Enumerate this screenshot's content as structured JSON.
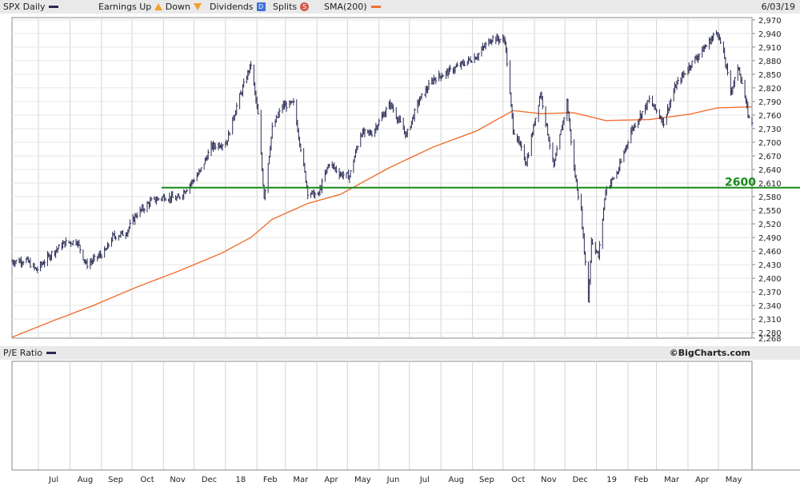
{
  "header": {
    "symbol": "SPX Daily",
    "earnings_label": "Earnings",
    "up_label": "Up",
    "down_label": "Down",
    "dividends_label": "Dividends",
    "dividends_badge": "D",
    "splits_label": "Splits",
    "splits_badge": "S",
    "sma_label": "SMA(200)",
    "date": "6/03/19",
    "colors": {
      "price": "#2a2a55",
      "sma": "#f07030",
      "support": "#1a8a1a"
    }
  },
  "pe_panel": {
    "title": "P/E Ratio"
  },
  "watermark": "©BigCharts.com",
  "chart_data": {
    "type": "line",
    "title": "SPX Daily",
    "x_tick_labels": [
      "Jul",
      "Aug",
      "Sep",
      "Oct",
      "Nov",
      "Dec",
      "18",
      "Feb",
      "Mar",
      "Apr",
      "May",
      "Jun",
      "Jul",
      "Aug",
      "Sep",
      "Oct",
      "Nov",
      "Dec",
      "19",
      "Feb",
      "Mar",
      "Apr",
      "May"
    ],
    "y_ticks": [
      2268,
      2280,
      2310,
      2340,
      2370,
      2400,
      2430,
      2460,
      2490,
      2520,
      2550,
      2580,
      2610,
      2640,
      2670,
      2700,
      2730,
      2760,
      2790,
      2820,
      2850,
      2880,
      2910,
      2940,
      2970
    ],
    "ylim": [
      2268,
      2975
    ],
    "support_line": {
      "value": 2600,
      "label": "2600"
    },
    "grid": true,
    "series": [
      {
        "name": "SPX Daily",
        "style": "ohlc-bars",
        "points": [
          [
            "2017-06-05",
            2437
          ],
          [
            "2017-06-19",
            2440
          ],
          [
            "2017-06-29",
            2418
          ],
          [
            "2017-07-14",
            2455
          ],
          [
            "2017-07-27",
            2478
          ],
          [
            "2017-08-08",
            2482
          ],
          [
            "2017-08-17",
            2430
          ],
          [
            "2017-08-24",
            2440
          ],
          [
            "2017-09-05",
            2460
          ],
          [
            "2017-09-12",
            2492
          ],
          [
            "2017-09-25",
            2500
          ],
          [
            "2017-10-05",
            2540
          ],
          [
            "2017-10-20",
            2570
          ],
          [
            "2017-11-02",
            2580
          ],
          [
            "2017-11-15",
            2575
          ],
          [
            "2017-11-28",
            2610
          ],
          [
            "2017-12-07",
            2635
          ],
          [
            "2017-12-18",
            2690
          ],
          [
            "2018-01-02",
            2700
          ],
          [
            "2018-01-12",
            2780
          ],
          [
            "2018-01-26",
            2872
          ],
          [
            "2018-02-02",
            2760
          ],
          [
            "2018-02-08",
            2580
          ],
          [
            "2018-02-16",
            2730
          ],
          [
            "2018-02-26",
            2780
          ],
          [
            "2018-03-09",
            2785
          ],
          [
            "2018-03-23",
            2590
          ],
          [
            "2018-04-02",
            2582
          ],
          [
            "2018-04-13",
            2655
          ],
          [
            "2018-04-24",
            2630
          ],
          [
            "2018-05-03",
            2625
          ],
          [
            "2018-05-14",
            2720
          ],
          [
            "2018-05-25",
            2720
          ],
          [
            "2018-06-12",
            2785
          ],
          [
            "2018-06-28",
            2715
          ],
          [
            "2018-07-10",
            2790
          ],
          [
            "2018-07-25",
            2840
          ],
          [
            "2018-08-08",
            2855
          ],
          [
            "2018-08-24",
            2875
          ],
          [
            "2018-09-05",
            2890
          ],
          [
            "2018-09-20",
            2930
          ],
          [
            "2018-10-03",
            2925
          ],
          [
            "2018-10-11",
            2730
          ],
          [
            "2018-10-24",
            2655
          ],
          [
            "2018-11-07",
            2810
          ],
          [
            "2018-11-20",
            2645
          ],
          [
            "2018-12-03",
            2790
          ],
          [
            "2018-12-10",
            2640
          ],
          [
            "2018-12-17",
            2545
          ],
          [
            "2018-12-24",
            2351
          ],
          [
            "2018-12-27",
            2485
          ],
          [
            "2019-01-03",
            2448
          ],
          [
            "2019-01-10",
            2595
          ],
          [
            "2019-01-22",
            2635
          ],
          [
            "2019-02-04",
            2725
          ],
          [
            "2019-02-22",
            2793
          ],
          [
            "2019-03-08",
            2745
          ],
          [
            "2019-03-20",
            2825
          ],
          [
            "2019-04-03",
            2870
          ],
          [
            "2019-04-16",
            2905
          ],
          [
            "2019-04-30",
            2945
          ],
          [
            "2019-05-07",
            2885
          ],
          [
            "2019-05-13",
            2812
          ],
          [
            "2019-05-21",
            2865
          ],
          [
            "2019-05-31",
            2752
          ],
          [
            "2019-06-03",
            2745
          ]
        ]
      },
      {
        "name": "SMA(200)",
        "style": "line",
        "points": [
          [
            "2017-06-05",
            2270
          ],
          [
            "2017-07-14",
            2305
          ],
          [
            "2017-08-24",
            2340
          ],
          [
            "2017-10-05",
            2380
          ],
          [
            "2017-11-15",
            2415
          ],
          [
            "2017-12-28",
            2455
          ],
          [
            "2018-01-26",
            2490
          ],
          [
            "2018-02-16",
            2530
          ],
          [
            "2018-03-23",
            2565
          ],
          [
            "2018-04-24",
            2585
          ],
          [
            "2018-06-12",
            2645
          ],
          [
            "2018-07-25",
            2690
          ],
          [
            "2018-09-05",
            2725
          ],
          [
            "2018-10-11",
            2770
          ],
          [
            "2018-11-07",
            2763
          ],
          [
            "2018-12-10",
            2765
          ],
          [
            "2019-01-10",
            2748
          ],
          [
            "2019-02-22",
            2750
          ],
          [
            "2019-04-03",
            2762
          ],
          [
            "2019-04-30",
            2776
          ],
          [
            "2019-06-03",
            2778
          ]
        ]
      }
    ]
  }
}
